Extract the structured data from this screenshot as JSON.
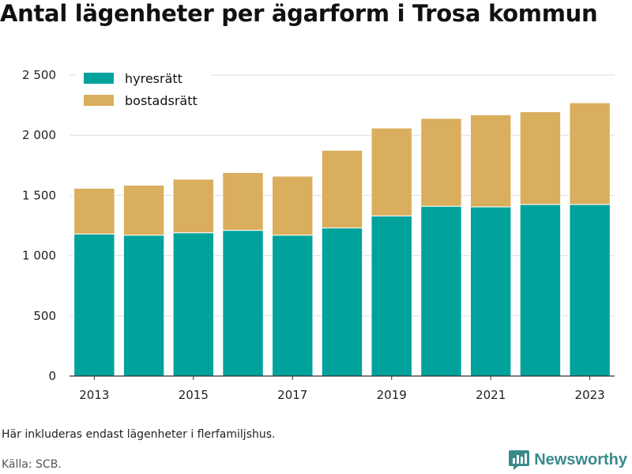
{
  "title": "Antal lägenheter per ägarform i Trosa kommun",
  "note": "Här inkluderas endast lägenheter i flerfamiljshus.",
  "source": "Källa: SCB.",
  "brand": {
    "name": "Newsworthy",
    "icon": "bar-chart-logo-icon"
  },
  "colors": {
    "hyresratt": "#00a29b",
    "bostadsratt": "#d9ae5d",
    "grid": "#dddddd",
    "axis": "#333333",
    "brand": "#3a8a8c"
  },
  "chart_data": {
    "type": "bar",
    "stacked": true,
    "categories": [
      "2013",
      "2014",
      "2015",
      "2016",
      "2017",
      "2018",
      "2019",
      "2020",
      "2021",
      "2022",
      "2023"
    ],
    "series": [
      {
        "name": "hyresrätt",
        "color": "#00a29b",
        "values": [
          1180,
          1170,
          1190,
          1210,
          1170,
          1230,
          1330,
          1410,
          1405,
          1425,
          1425
        ]
      },
      {
        "name": "bostadsrätt",
        "color": "#d9ae5d",
        "values": [
          380,
          415,
          445,
          480,
          490,
          645,
          730,
          730,
          765,
          770,
          845
        ]
      }
    ],
    "xtick_labels": [
      "2013",
      "2015",
      "2017",
      "2019",
      "2021",
      "2023"
    ],
    "yticks": [
      0,
      500,
      1000,
      1500,
      2000,
      2500
    ],
    "ytick_labels": [
      "0",
      "500",
      "1 000",
      "1 500",
      "2 000",
      "2 500"
    ],
    "ylim": [
      0,
      2500
    ],
    "grid": true,
    "legend_position": "top-left"
  }
}
